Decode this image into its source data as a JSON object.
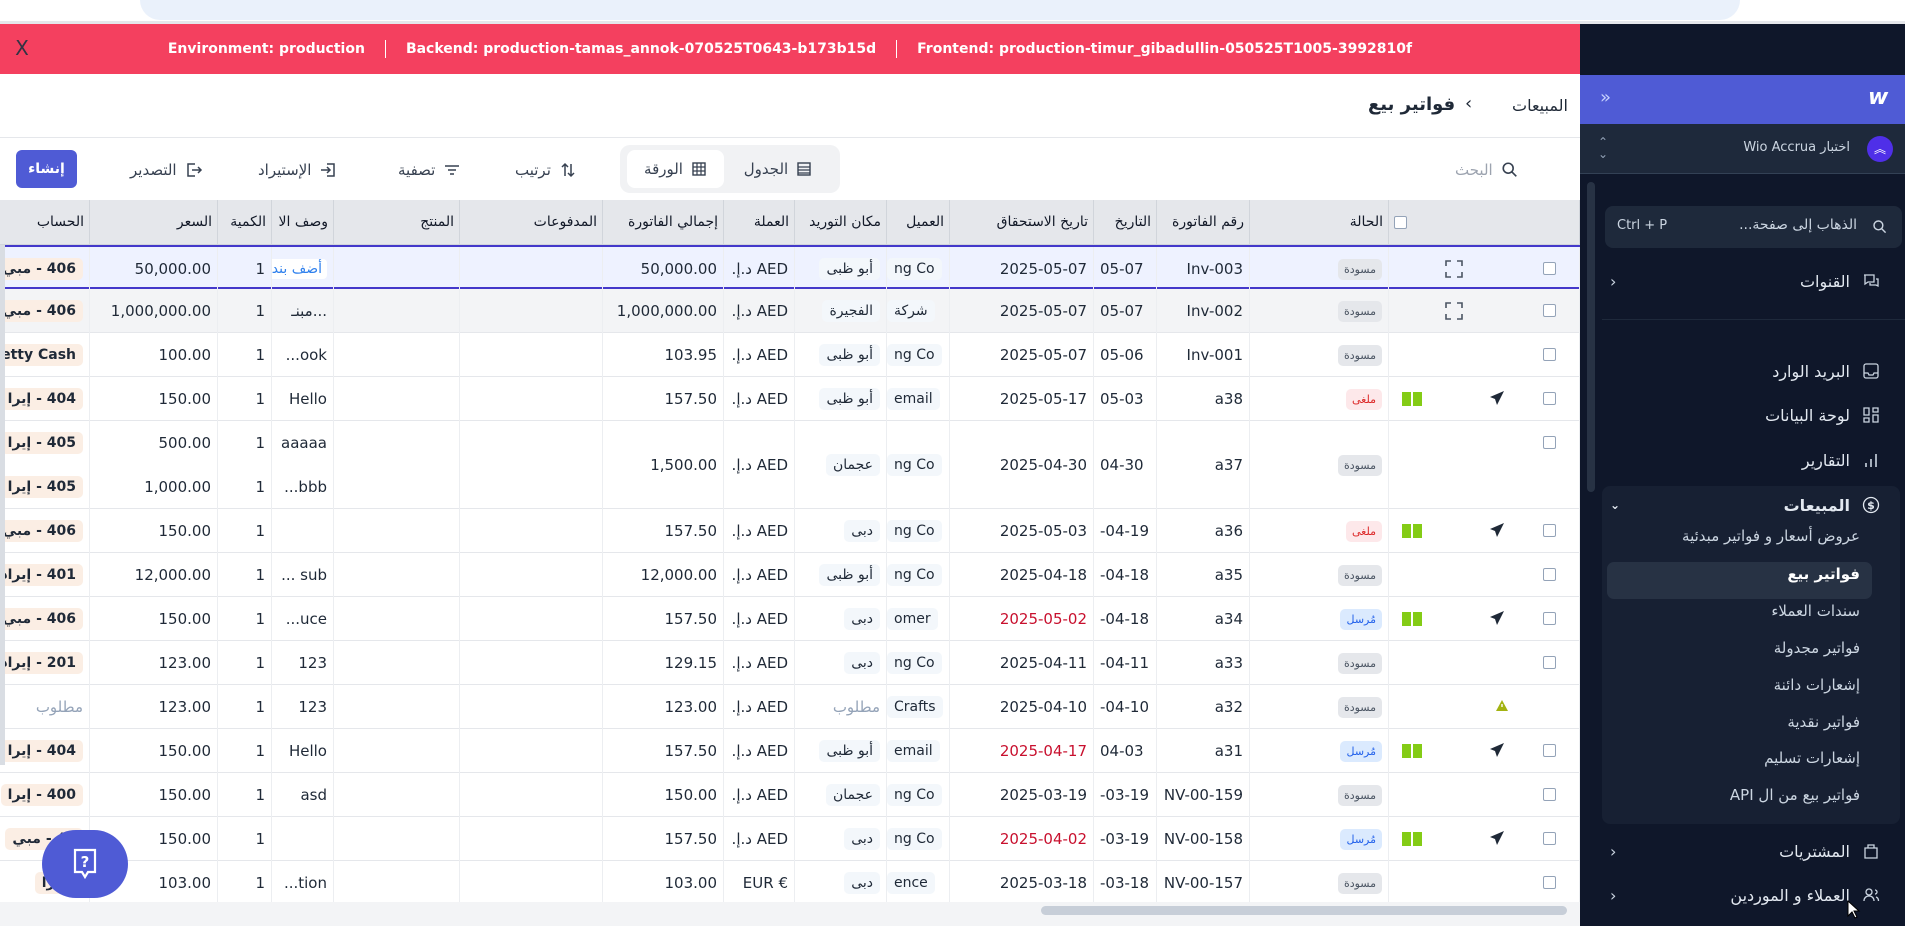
{
  "banner": {
    "environment": "Environment: production",
    "backend": "Backend: production-tamas_annok-070525T0643-b173b15d",
    "frontend": "Frontend: production-timur_gibadullin-050525T1005-3992810f",
    "close": "X"
  },
  "breadcrumb": {
    "parent": "المبيعات",
    "separator": "›",
    "current": "فواتير بيع"
  },
  "toolbar": {
    "search_placeholder": "البحث",
    "view_table": "الجدول",
    "view_sheet": "الورقة",
    "active_view": "الورقة",
    "sort": "ترتيب",
    "filter": "تصفية",
    "import": "الإستيراد",
    "export": "التصدير",
    "create": "إنشاء"
  },
  "columns": {
    "account": "الحساب",
    "price": "السعر",
    "qty": "الكمية",
    "desc": "وصف الا",
    "product": "المنتج",
    "payments": "المدفوعات",
    "total": "إجمالي الفاتورة",
    "currency": "العملة",
    "place": "مكان التوريد",
    "customer": "العميل",
    "due": "تاريخ الاستحقاق",
    "date": "التاريخ",
    "invoice": "رقم الفاتورة",
    "status": "الحالة"
  },
  "status_colors": {
    "مسودة": "#e5e7eb",
    "ملغى": "#fde8ea",
    "مُرسل": "#dbeafe"
  },
  "rows": [
    {
      "status": "مسودة",
      "status_type": "draft",
      "invoice": "Inv-003",
      "date": "05-07",
      "due": "2025-05-07",
      "customer": "ng Co",
      "place": "أبو ظبى",
      "currency": "AED د.إ.",
      "total": "50,000.00",
      "icons": [
        "expand-icon"
      ],
      "selected": true,
      "lines": [
        {
          "desc": "أضف بند",
          "desc_is_button": true,
          "qty": "1",
          "price": "50,000.00",
          "account": "406 - مبي"
        }
      ]
    },
    {
      "status": "مسودة",
      "status_type": "draft",
      "invoice": "Inv-002",
      "date": "05-07",
      "due": "2025-05-07",
      "customer": "شركة",
      "place": "الفجيرة",
      "currency": "AED د.إ.",
      "total": "1,000,000.00",
      "icons": [
        "expand-icon"
      ],
      "hover": true,
      "lines": [
        {
          "desc": "مبنـ...",
          "qty": "1",
          "price": "1,000,000.00",
          "account": "406 - مبي"
        }
      ]
    },
    {
      "status": "مسودة",
      "status_type": "draft",
      "invoice": "Inv-001",
      "date": "05-06",
      "due": "2025-05-07",
      "customer": "ng Co",
      "place": "أبو ظبى",
      "currency": "AED د.إ.",
      "total": "103.95",
      "icons": [],
      "lines": [
        {
          "desc": "...ook",
          "qty": "1",
          "price": "100.00",
          "account": "etty Cash"
        }
      ]
    },
    {
      "status": "ملغى",
      "status_type": "cancel",
      "invoice": "a38",
      "date": "05-03",
      "due": "2025-05-17",
      "customer": "email",
      "place": "أبو ظبى",
      "currency": "AED د.إ.",
      "total": "157.50",
      "icons": [
        "book-icon",
        "send-icon"
      ],
      "lines": [
        {
          "desc": "Hello",
          "qty": "1",
          "price": "150.00",
          "account": "404 - إيرا"
        }
      ]
    },
    {
      "status": "مسودة",
      "status_type": "draft",
      "invoice": "a37",
      "date": "04-30",
      "due": "2025-04-30",
      "customer": "ng Co",
      "place": "عجمان",
      "currency": "AED د.إ.",
      "total": "1,500.00",
      "icons": [],
      "lines": [
        {
          "desc": "aaaaa",
          "qty": "1",
          "price": "500.00",
          "account": "405 - إيرا"
        },
        {
          "desc": "...bbb",
          "qty": "1",
          "price": "1,000.00",
          "account": "405 - إيرا"
        }
      ]
    },
    {
      "status": "ملغى",
      "status_type": "cancel",
      "invoice": "a36",
      "date": "-04-19",
      "due": "2025-05-03",
      "customer": "ng Co",
      "place": "دبى",
      "currency": "AED د.إ.",
      "total": "157.50",
      "icons": [
        "book-icon",
        "send-icon"
      ],
      "lines": [
        {
          "desc": "",
          "qty": "1",
          "price": "150.00",
          "account": "406 - مبي"
        }
      ]
    },
    {
      "status": "مسودة",
      "status_type": "draft",
      "invoice": "a35",
      "date": "-04-18",
      "due": "2025-04-18",
      "customer": "ng Co",
      "place": "أبو ظبى",
      "currency": "AED د.إ.",
      "total": "12,000.00",
      "icons": [],
      "lines": [
        {
          "desc": "... sub",
          "qty": "1",
          "price": "12,000.00",
          "account": "401 - إيراد"
        }
      ]
    },
    {
      "status": "مُرسل",
      "status_type": "sent",
      "invoice": "a34",
      "date": "-04-18",
      "due": "2025-05-02",
      "due_overdue": true,
      "customer": "omer",
      "place": "دبى",
      "currency": "AED د.إ.",
      "total": "157.50",
      "icons": [
        "book-icon",
        "send-icon"
      ],
      "lines": [
        {
          "desc": "...uce",
          "qty": "1",
          "price": "150.00",
          "account": "406 - مبي"
        }
      ]
    },
    {
      "status": "مسودة",
      "status_type": "draft",
      "invoice": "a33",
      "date": "-04-11",
      "due": "2025-04-11",
      "customer": "ng Co",
      "place": "دبى",
      "currency": "AED د.إ.",
      "total": "129.15",
      "icons": [],
      "lines": [
        {
          "desc": "123",
          "qty": "1",
          "price": "123.00",
          "account": "201 - إيراد"
        }
      ]
    },
    {
      "status": "مسودة",
      "status_type": "draft",
      "invoice": "a32",
      "date": "-04-10",
      "due": "2025-04-10",
      "customer": "Crafts",
      "place": "مطلوب",
      "place_placeholder": true,
      "currency": "AED د.إ.",
      "total": "123.00",
      "icons": [
        "warning-icon"
      ],
      "no_checkbox": true,
      "lines": [
        {
          "desc": "123",
          "qty": "1",
          "price": "123.00",
          "account": "مطلوب",
          "account_placeholder": true
        }
      ]
    },
    {
      "status": "مُرسل",
      "status_type": "sent",
      "invoice": "a31",
      "date": "04-03",
      "due": "2025-04-17",
      "due_overdue": true,
      "customer": "email",
      "place": "أبو ظبى",
      "currency": "AED د.إ.",
      "total": "157.50",
      "icons": [
        "book-icon",
        "send-icon"
      ],
      "lines": [
        {
          "desc": "Hello",
          "qty": "1",
          "price": "150.00",
          "account": "404 - إيرا"
        }
      ]
    },
    {
      "status": "مسودة",
      "status_type": "draft",
      "invoice": "NV-00-159",
      "date": "-03-19",
      "due": "2025-03-19",
      "customer": "ng Co",
      "place": "عجمان",
      "currency": "AED د.إ.",
      "total": "150.00",
      "icons": [],
      "lines": [
        {
          "desc": "asd",
          "qty": "1",
          "price": "150.00",
          "account": "400 - إيرا"
        }
      ]
    },
    {
      "status": "مُرسل",
      "status_type": "sent",
      "invoice": "NV-00-158",
      "date": "-03-19",
      "due": "2025-04-02",
      "due_overdue": true,
      "customer": "ng Co",
      "place": "دبى",
      "currency": "AED د.إ.",
      "total": "157.50",
      "icons": [
        "book-icon",
        "send-icon"
      ],
      "lines": [
        {
          "desc": "",
          "qty": "1",
          "price": "150.00",
          "account": "40 - مبي"
        }
      ]
    },
    {
      "status": "مسودة",
      "status_type": "draft",
      "invoice": "NV-00-157",
      "date": "-03-18",
      "due": "2025-03-18",
      "customer": "ence",
      "place": "دبى",
      "currency": "€ EUR",
      "total": "103.00",
      "icons": [],
      "lines": [
        {
          "desc": "...tion",
          "qty": "1",
          "price": "103.00",
          "account": "- إيرا"
        }
      ]
    }
  ],
  "sidebar": {
    "workspace": "اختبار Wio Accrua",
    "search_placeholder": "الذهاب إلى صفحة...",
    "search_shortcut": "Ctrl + P",
    "channels": "القنوات",
    "items": [
      {
        "label": "البريد الوارد",
        "icon": "inbox-icon"
      },
      {
        "label": "لوحة البيانات",
        "icon": "dashboard-icon"
      },
      {
        "label": "التقارير",
        "icon": "chart-icon"
      }
    ],
    "sales": {
      "label": "المبيعات",
      "children": [
        "عروض أسعار و فواتير مبدئية",
        "فواتير بيع",
        "سندات العملاء",
        "فواتير مجدولة",
        "إشعارات دائنة",
        "فواتير نقدية",
        "إشعارات تسليم",
        "فواتير بيع من ال API"
      ],
      "active": "فواتير بيع"
    },
    "purchases": "المشتريات",
    "contacts": "العملاء و الموردين"
  },
  "colors": {
    "banner": "#f4405f",
    "accent": "#4f5bd5",
    "sidebar": "#0f172a"
  }
}
